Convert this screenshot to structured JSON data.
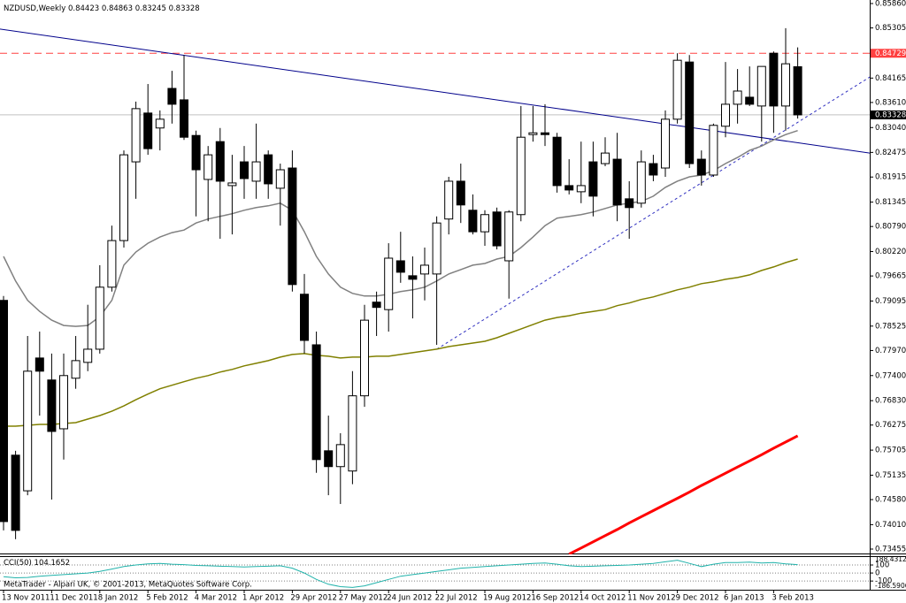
{
  "chart_data": [
    {
      "type": "candlestick",
      "title": "NZDUSD,Weekly",
      "categories": [
        "13 Nov 2011",
        null,
        null,
        null,
        "11 Dec 2011",
        null,
        null,
        null,
        "8 Jan 2012",
        null,
        null,
        null,
        "5 Feb 2012",
        null,
        null,
        null,
        "4 Mar 2012",
        null,
        null,
        null,
        "1 Apr 2012",
        null,
        null,
        null,
        "29 Apr 2012",
        null,
        null,
        null,
        "27 May 2012",
        null,
        null,
        null,
        "24 Jun 2012",
        null,
        null,
        null,
        "22 Jul 2012",
        null,
        null,
        null,
        "19 Aug 2012",
        null,
        null,
        null,
        "16 Sep 2012",
        null,
        null,
        null,
        "14 Oct 2012",
        null,
        null,
        null,
        "11 Nov 2012",
        null,
        null,
        null,
        "9 Dec 2012",
        null,
        null,
        null,
        "6 Jan 2013",
        null,
        null,
        null,
        "3 Feb 2013",
        null,
        null
      ],
      "open": [
        0.7911,
        0.7559,
        0.7478,
        0.778,
        0.773,
        0.7619,
        0.7734,
        0.777,
        0.78,
        0.7941,
        0.8047,
        0.8226,
        0.8337,
        0.8303,
        0.8393,
        0.8367,
        0.8286,
        0.8186,
        0.8272,
        0.8172,
        0.8226,
        0.8182,
        0.8242,
        0.8166,
        0.8212,
        0.7925,
        0.781,
        0.7569,
        0.7533,
        0.7523,
        0.7694,
        0.7907,
        0.789,
        0.8001,
        0.7967,
        0.7971,
        0.7971,
        0.8096,
        0.8182,
        0.8116,
        0.8067,
        0.8112,
        0.8001,
        0.8106,
        0.8288,
        0.8292,
        0.8282,
        0.8172,
        0.8158,
        0.8226,
        0.8222,
        0.8232,
        0.8142,
        0.8132,
        0.8222,
        0.8212,
        0.8323,
        0.8453,
        0.8232,
        0.8196,
        0.8307,
        0.8357,
        0.8373,
        0.8353,
        0.8473,
        0.8353,
        0.84423
      ],
      "high": [
        0.7921,
        0.7569,
        0.783,
        0.784,
        0.779,
        0.779,
        0.783,
        0.7901,
        0.7991,
        0.8081,
        0.8252,
        0.8363,
        0.8403,
        0.8343,
        0.8433,
        0.8469,
        0.8297,
        0.8262,
        0.8303,
        0.8242,
        0.8262,
        0.8313,
        0.8252,
        0.8222,
        0.8252,
        0.7971,
        0.784,
        0.7649,
        0.7609,
        0.775,
        0.7901,
        0.7931,
        0.8041,
        0.8067,
        0.8011,
        0.8031,
        0.8102,
        0.8192,
        0.8222,
        0.8152,
        0.8116,
        0.8122,
        0.8116,
        0.8353,
        0.8353,
        0.8357,
        0.8292,
        0.8232,
        0.8272,
        0.8272,
        0.8282,
        0.8292,
        0.8182,
        0.8252,
        0.8242,
        0.8343,
        0.8473,
        0.8469,
        0.8252,
        0.8313,
        0.8453,
        0.8437,
        0.8443,
        0.8443,
        0.8477,
        0.853,
        0.84863
      ],
      "low": [
        0.7388,
        0.7368,
        0.7468,
        0.7649,
        0.7458,
        0.7549,
        0.771,
        0.775,
        0.779,
        0.7931,
        0.8031,
        0.8142,
        0.8242,
        0.8252,
        0.8313,
        0.8276,
        0.8102,
        0.8091,
        0.8051,
        0.8061,
        0.8142,
        0.8142,
        0.8142,
        0.8081,
        0.7931,
        0.779,
        0.7519,
        0.7468,
        0.7448,
        0.7493,
        0.7669,
        0.783,
        0.784,
        0.7951,
        0.787,
        0.7911,
        0.781,
        0.8061,
        0.8087,
        0.8061,
        0.8035,
        0.8027,
        0.7915,
        0.8091,
        0.8272,
        0.8262,
        0.8156,
        0.8152,
        0.8132,
        0.8102,
        0.8216,
        0.8091,
        0.8051,
        0.8122,
        0.8182,
        0.8192,
        0.8313,
        0.8212,
        0.8172,
        0.8192,
        0.8282,
        0.8313,
        0.8353,
        0.8272,
        0.8292,
        0.8297,
        0.83245
      ],
      "close": [
        0.7408,
        0.7388,
        0.775,
        0.775,
        0.7613,
        0.774,
        0.7774,
        0.78,
        0.7941,
        0.8047,
        0.8242,
        0.8347,
        0.8256,
        0.8323,
        0.8357,
        0.8282,
        0.8208,
        0.8242,
        0.8182,
        0.8178,
        0.8188,
        0.8226,
        0.8176,
        0.8208,
        0.7947,
        0.782,
        0.7549,
        0.7533,
        0.7583,
        0.7694,
        0.7866,
        0.7895,
        0.8007,
        0.7975,
        0.7959,
        0.7991,
        0.8087,
        0.8182,
        0.8128,
        0.8067,
        0.8106,
        0.8035,
        0.8112,
        0.8282,
        0.8292,
        0.8288,
        0.8172,
        0.8162,
        0.8172,
        0.8148,
        0.8246,
        0.8128,
        0.8122,
        0.8226,
        0.8196,
        0.8323,
        0.8457,
        0.8222,
        0.8196,
        0.8309,
        0.8357,
        0.8387,
        0.8357,
        0.8443,
        0.8353,
        0.8449,
        0.83328
      ],
      "up_color": "#ffffff",
      "down_color": "#000000",
      "ylim": [
        0.73455,
        0.8586
      ],
      "yticks": [
        {
          "value": 0.73455,
          "label": "0.73455"
        },
        {
          "value": 0.7401,
          "label": "0.74010"
        },
        {
          "value": 0.7458,
          "label": "0.74580"
        },
        0.75135,
        0.75705,
        0.76275,
        {
          "value": 0.7683,
          "label": "0.76830"
        },
        {
          "value": 0.774,
          "label": "0.77400"
        },
        {
          "value": 0.7797,
          "label": "0.77970"
        },
        0.78525,
        0.79095,
        0.79665,
        {
          "value": 0.8022,
          "label": "0.80220"
        },
        {
          "value": 0.8079,
          "label": "0.80790"
        },
        0.81345,
        0.81915,
        0.82475,
        {
          "value": 0.8304,
          "label": "0.83040"
        },
        {
          "value": 0.8361,
          "label": "0.83610"
        },
        0.84165,
        0.85305,
        {
          "value": 0.8586,
          "label": "0.85860"
        }
      ],
      "series": [
        {
          "color": "#808080",
          "values": [
            0.8011,
            0.7955,
            0.7911,
            0.7886,
            0.7866,
            0.7854,
            0.7852,
            0.7854,
            0.7874,
            0.7911,
            0.7991,
            0.8021,
            0.8041,
            0.8055,
            0.8065,
            0.8071,
            0.8087,
            0.8096,
            0.8102,
            0.8108,
            0.8116,
            0.8122,
            0.8126,
            0.8132,
            0.8116,
            0.8067,
            0.8011,
            0.7971,
            0.7941,
            0.7927,
            0.7921,
            0.7921,
            0.7925,
            0.7931,
            0.7935,
            0.7941,
            0.7955,
            0.7971,
            0.7981,
            0.7991,
            0.7995,
            0.8005,
            0.8011,
            0.8031,
            0.8055,
            0.8081,
            0.8098,
            0.8102,
            0.8106,
            0.8112,
            0.812,
            0.8128,
            0.8132,
            0.8136,
            0.8148,
            0.8168,
            0.8182,
            0.8192,
            0.8196,
            0.8206,
            0.8222,
            0.8236,
            0.8252,
            0.8262,
            0.8276,
            0.8288,
            0.8297
          ]
        },
        {
          "color": "#808000",
          "values": [
            0.7625,
            0.7625,
            0.7627,
            0.7629,
            0.7629,
            0.7631,
            0.7633,
            0.7641,
            0.7649,
            0.7659,
            0.7671,
            0.7685,
            0.7698,
            0.771,
            0.7718,
            0.7726,
            0.7734,
            0.774,
            0.7748,
            0.7754,
            0.7762,
            0.7768,
            0.7774,
            0.7782,
            0.7788,
            0.779,
            0.7786,
            0.7784,
            0.778,
            0.7782,
            0.7782,
            0.7784,
            0.7784,
            0.7788,
            0.7792,
            0.7796,
            0.78,
            0.7806,
            0.781,
            0.7814,
            0.7818,
            0.7826,
            0.7836,
            0.7846,
            0.7856,
            0.7866,
            0.7872,
            0.7876,
            0.7882,
            0.7886,
            0.789,
            0.7899,
            0.7905,
            0.7913,
            0.7919,
            0.7927,
            0.7935,
            0.7941,
            0.7949,
            0.7953,
            0.7959,
            0.7963,
            0.7969,
            0.7979,
            0.7987,
            0.7997,
            0.8005
          ]
        },
        {
          "color": "#ff0000",
          "values": [
            null,
            null,
            null,
            null,
            null,
            null,
            null,
            null,
            null,
            null,
            null,
            null,
            null,
            null,
            null,
            null,
            null,
            null,
            null,
            null,
            null,
            null,
            null,
            null,
            null,
            null,
            null,
            null,
            null,
            null,
            null,
            null,
            null,
            null,
            null,
            null,
            null,
            null,
            null,
            null,
            null,
            null,
            null,
            null,
            null,
            null,
            null,
            0.7334,
            0.7348,
            0.7362,
            0.7376,
            0.739,
            0.7405,
            0.7419,
            0.7433,
            0.7447,
            0.7461,
            0.7475,
            0.749,
            0.7504,
            0.7518,
            0.7532,
            0.7546,
            0.756,
            0.7575,
            0.7589,
            0.7603
          ]
        }
      ],
      "trendlines": [
        {
          "color": "#00008b",
          "style": "solid",
          "x": [
            -0.3,
            72
          ],
          "values": [
            0.8528,
            0.8246
          ]
        },
        {
          "color": "#3030c0",
          "style": "dotted",
          "x": [
            36,
            72
          ],
          "values": [
            0.78,
            0.8419
          ]
        }
      ],
      "hlines": [
        {
          "value": 0.84729,
          "color": "#ff4040"
        }
      ],
      "last_price_color": "#c0c0c0"
    },
    {
      "type": "line",
      "title": "CCI(50)",
      "color": "#20b2aa",
      "values": [
        -45,
        -60,
        -55,
        -40,
        -30,
        -20,
        -10,
        0,
        20,
        50,
        80,
        100,
        115,
        120,
        110,
        105,
        95,
        90,
        85,
        80,
        75,
        80,
        85,
        90,
        60,
        0,
        -80,
        -140,
        -170,
        -180,
        -160,
        -120,
        -80,
        -40,
        -20,
        0,
        20,
        40,
        60,
        70,
        80,
        90,
        100,
        110,
        120,
        125,
        110,
        90,
        80,
        85,
        90,
        95,
        100,
        110,
        120,
        140,
        160,
        120,
        80,
        110,
        130,
        130,
        135,
        125,
        130,
        115,
        104.1652
      ],
      "ylim": [
        -186.5906,
        188.4312
      ],
      "yticks": [
        -100,
        0,
        100
      ]
    }
  ],
  "footer": "MetaTrader - Alpari UK, © 2001-2013, MetaQuotes Software Corp."
}
